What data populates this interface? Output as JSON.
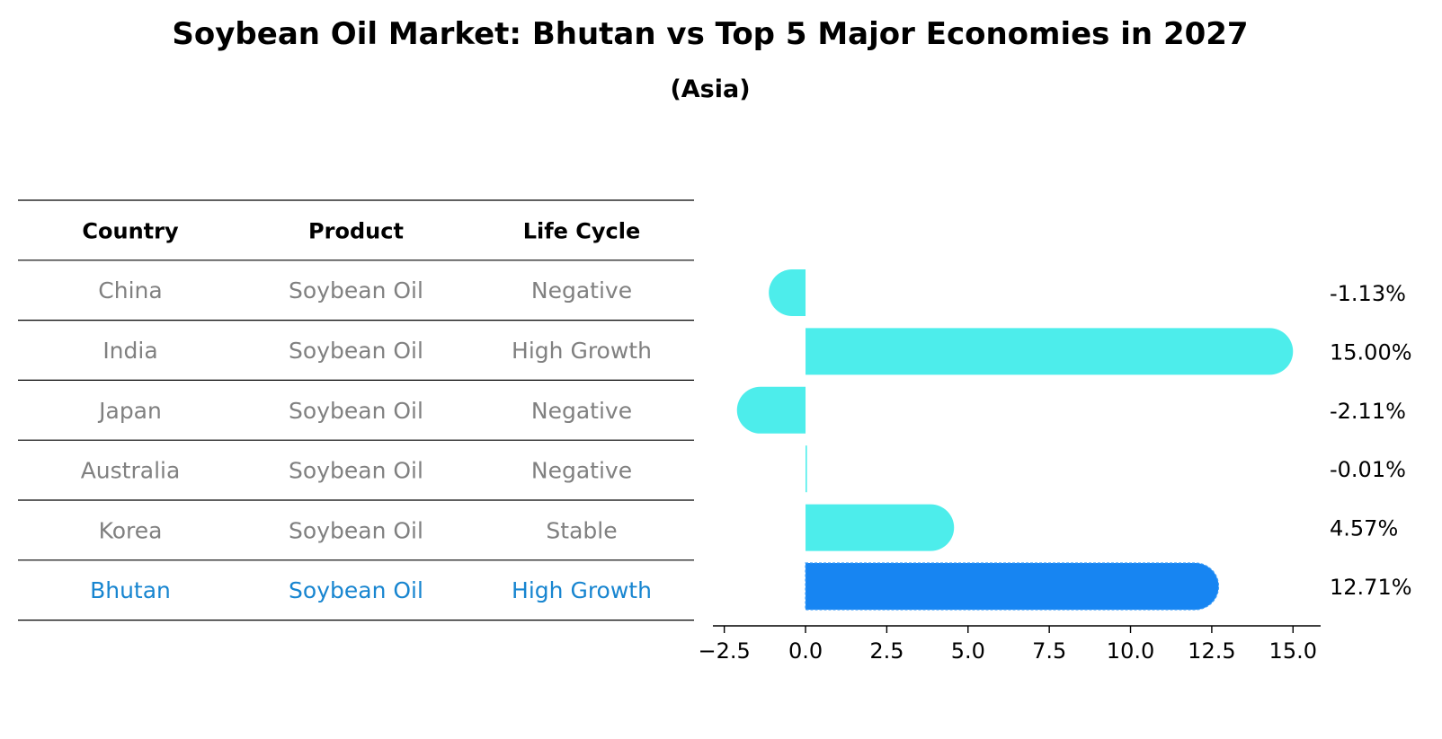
{
  "chart_data": {
    "type": "bar",
    "orientation": "horizontal",
    "title": "Soybean Oil Market: Bhutan vs Top 5 Major Economies in 2027",
    "subtitle": "(Asia)",
    "table": {
      "columns": [
        "Country",
        "Product",
        "Life Cycle"
      ],
      "rows": [
        {
          "country": "China",
          "product": "Soybean Oil",
          "life_cycle": "Negative"
        },
        {
          "country": "India",
          "product": "Soybean Oil",
          "life_cycle": "High Growth"
        },
        {
          "country": "Japan",
          "product": "Soybean Oil",
          "life_cycle": "Negative"
        },
        {
          "country": "Australia",
          "product": "Soybean Oil",
          "life_cycle": "Negative"
        },
        {
          "country": "Korea",
          "product": "Soybean Oil",
          "life_cycle": "Stable"
        },
        {
          "country": "Bhutan",
          "product": "Soybean Oil",
          "life_cycle": "High Growth"
        }
      ]
    },
    "categories": [
      "China",
      "India",
      "Japan",
      "Australia",
      "Korea",
      "Bhutan"
    ],
    "values": [
      -1.13,
      15.0,
      -2.11,
      -0.01,
      4.57,
      12.71
    ],
    "value_labels": [
      "-1.13%",
      "15.00%",
      "-2.11%",
      "-0.01%",
      "4.57%",
      "12.71%"
    ],
    "highlight": "Bhutan",
    "xlim": [
      -2.85,
      15.85
    ],
    "xticks": [
      -2.5,
      0.0,
      2.5,
      5.0,
      7.5,
      10.0,
      12.5,
      15.0
    ],
    "xtick_labels": [
      "−2.5",
      "0.0",
      "2.5",
      "5.0",
      "7.5",
      "10.0",
      "12.5",
      "15.0"
    ],
    "colors": {
      "bar": "#4DEDEB",
      "highlight_bar": "#1785F2",
      "highlight_text": "#1785D0",
      "muted_text": "#808080",
      "text": "#000000"
    }
  }
}
